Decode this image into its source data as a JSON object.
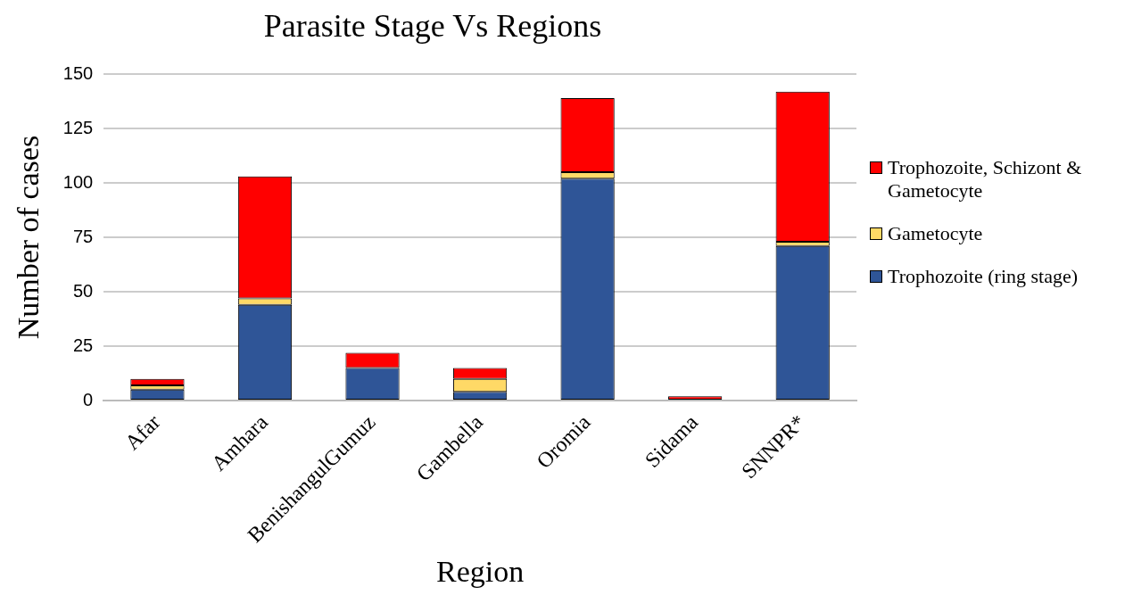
{
  "chart_data": {
    "type": "bar",
    "title": "Parasite Stage Vs Regions",
    "xlabel": "Region",
    "ylabel": "Number of cases",
    "categories": [
      "Afar",
      "Amhara",
      "BenishangulGumuz",
      "Gambella",
      "Oromia",
      "Sidama",
      "SNNPR*"
    ],
    "stacked": true,
    "series": [
      {
        "name": "Trophozoite (ring stage)",
        "color": "#2f5597",
        "values": [
          5,
          44,
          15,
          4,
          102,
          0,
          71
        ]
      },
      {
        "name": "Gametocyte",
        "color": "#ffd966",
        "values": [
          2,
          3,
          0,
          6,
          3,
          0,
          2
        ]
      },
      {
        "name": "Trophozoite, Schizont & Gametocyte",
        "color": "#ff0000",
        "values": [
          3,
          56,
          7,
          5,
          34,
          2,
          69
        ]
      }
    ],
    "ylim": [
      0,
      150
    ],
    "yticks": [
      0,
      25,
      50,
      75,
      100,
      125,
      150
    ],
    "grid": "y",
    "legend": "right"
  }
}
